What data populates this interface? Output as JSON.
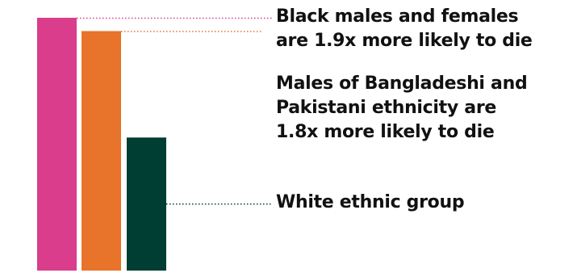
{
  "chart_data": {
    "type": "bar",
    "categories": [
      "Black males and females",
      "Males of Bangladeshi and Pakistani ethnicity",
      "White ethnic group"
    ],
    "values": [
      1.9,
      1.8,
      1.0
    ],
    "ylim": [
      0,
      1.9
    ],
    "grid": false,
    "legend": "none"
  },
  "colors": {
    "black": "#d93d8b",
    "south_asian": "#e8732a",
    "white": "#003d32"
  },
  "labels": {
    "black": {
      "line1": "Black males and females",
      "line2_pre": "are ",
      "line2_bold": "1.9x",
      "line2_post": " more likely to die"
    },
    "south_asian": {
      "line1": "Males of Bangladeshi and",
      "line2": "Pakistani ethnicity are",
      "line3_bold": "1.8x",
      "line3_post": " more likely to die"
    },
    "white": {
      "line1": "White ethnic group"
    }
  }
}
